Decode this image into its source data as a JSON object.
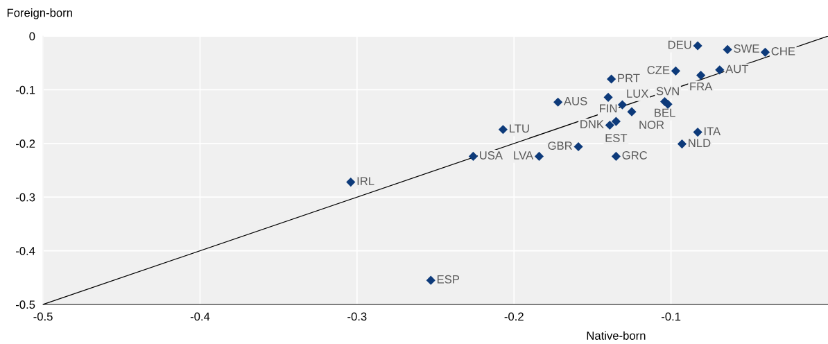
{
  "chart_data": {
    "type": "scatter",
    "xlabel": "Native-born",
    "ylabel": "Foreign-born",
    "xlim": [
      -0.5,
      0
    ],
    "ylim": [
      -0.5,
      0
    ],
    "xticks": [
      -0.5,
      -0.4,
      -0.3,
      -0.2,
      -0.1
    ],
    "yticks": [
      0,
      -0.1,
      -0.2,
      -0.3,
      -0.4,
      -0.5
    ],
    "grid": true,
    "marker": "diamond",
    "series": [
      {
        "color": "#0d3a7a",
        "x": [
          -0.083,
          -0.064,
          -0.04,
          -0.097,
          -0.081,
          -0.069,
          -0.138,
          -0.172,
          -0.14,
          -0.131,
          -0.104,
          -0.102,
          -0.125,
          -0.139,
          -0.135,
          -0.207,
          -0.083,
          -0.093,
          -0.159,
          -0.226,
          -0.184,
          -0.135,
          -0.304,
          -0.253
        ],
        "values": [
          -0.018,
          -0.025,
          -0.03,
          -0.065,
          -0.073,
          -0.063,
          -0.08,
          -0.123,
          -0.114,
          -0.128,
          -0.122,
          -0.127,
          -0.141,
          -0.166,
          -0.159,
          -0.174,
          -0.179,
          -0.201,
          -0.206,
          -0.224,
          -0.224,
          -0.224,
          -0.272,
          -0.455
        ]
      },
      {
        "type": "line",
        "marker": "none",
        "color": "#000000",
        "x": [
          -0.5,
          0
        ],
        "values": [
          -0.5,
          0
        ]
      }
    ],
    "annotations": [
      {
        "text": "DEU",
        "x": -0.083,
        "y": -0.018
      },
      {
        "text": "SWE",
        "x": -0.064,
        "y": -0.025
      },
      {
        "text": "CHE",
        "x": -0.04,
        "y": -0.03
      },
      {
        "text": "CZE",
        "x": -0.097,
        "y": -0.065
      },
      {
        "text": "FRA",
        "x": -0.081,
        "y": -0.073
      },
      {
        "text": "AUT",
        "x": -0.069,
        "y": -0.063
      },
      {
        "text": "PRT",
        "x": -0.138,
        "y": -0.08
      },
      {
        "text": "AUS",
        "x": -0.172,
        "y": -0.123
      },
      {
        "text": "FIN",
        "x": -0.14,
        "y": -0.114
      },
      {
        "text": "LUX",
        "x": -0.131,
        "y": -0.128
      },
      {
        "text": "BEL",
        "x": -0.104,
        "y": -0.122
      },
      {
        "text": "SVN",
        "x": -0.102,
        "y": -0.127
      },
      {
        "text": "NOR",
        "x": -0.125,
        "y": -0.141
      },
      {
        "text": "DNK",
        "x": -0.139,
        "y": -0.166
      },
      {
        "text": "EST",
        "x": -0.135,
        "y": -0.159
      },
      {
        "text": "LTU",
        "x": -0.207,
        "y": -0.174
      },
      {
        "text": "ITA",
        "x": -0.083,
        "y": -0.179
      },
      {
        "text": "NLD",
        "x": -0.093,
        "y": -0.201
      },
      {
        "text": "GBR",
        "x": -0.159,
        "y": -0.206
      },
      {
        "text": "USA",
        "x": -0.226,
        "y": -0.224
      },
      {
        "text": "LVA",
        "x": -0.184,
        "y": -0.224
      },
      {
        "text": "GRC",
        "x": -0.135,
        "y": -0.224
      },
      {
        "text": "IRL",
        "x": -0.304,
        "y": -0.272
      },
      {
        "text": "ESP",
        "x": -0.253,
        "y": -0.455
      }
    ]
  }
}
